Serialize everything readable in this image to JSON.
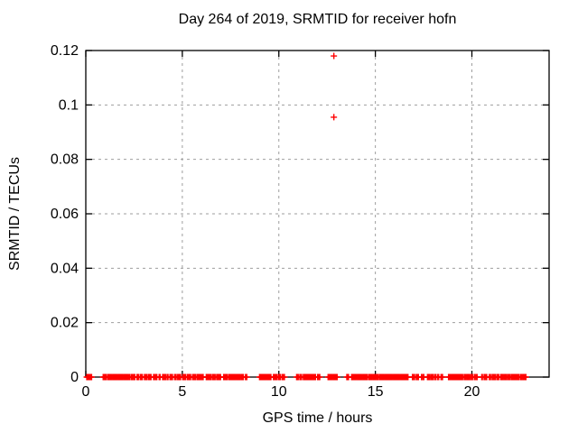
{
  "chart_data": {
    "type": "scatter",
    "title": "Day 264 of 2019, SRMTID for receiver hofn",
    "xlabel": "GPS time / hours",
    "ylabel": "SRMTID / TECUs",
    "xlim": [
      0,
      24
    ],
    "ylim": [
      0,
      0.12
    ],
    "xticks": [
      0,
      5,
      10,
      15,
      20
    ],
    "xtick_labels": [
      "0",
      "5",
      "10",
      "15",
      "20"
    ],
    "yticks": [
      0,
      0.02,
      0.04,
      0.06,
      0.08,
      0.1,
      0.12
    ],
    "ytick_labels": [
      "0",
      "0.02",
      "0.04",
      "0.06",
      "0.08",
      "0.1",
      "0.12"
    ],
    "grid": true,
    "legend_position": "none",
    "marker": "plus",
    "colors": {
      "marker": "#ff0000",
      "grid": "#9e9e9e",
      "border": "#000000",
      "background": "#ffffff",
      "text": "#000000"
    },
    "outlier_points": [
      [
        12.85,
        0.118
      ],
      [
        12.85,
        0.0955
      ]
    ],
    "baseline_y": 0,
    "baseline_marker_spacing_hours": 0.05,
    "baseline_segments": [
      [
        0.05,
        0.3
      ],
      [
        0.9,
        1.06
      ],
      [
        1.14,
        2.26
      ],
      [
        2.34,
        2.54
      ],
      [
        2.65,
        2.75
      ],
      [
        2.84,
        2.93
      ],
      [
        3.04,
        3.15
      ],
      [
        3.23,
        3.38
      ],
      [
        3.51,
        3.56
      ],
      [
        3.62,
        3.68
      ],
      [
        3.8,
        3.85
      ],
      [
        3.98,
        4.13
      ],
      [
        4.21,
        4.26
      ],
      [
        4.36,
        4.49
      ],
      [
        4.6,
        4.68
      ],
      [
        4.76,
        4.91
      ],
      [
        5.02,
        5.18
      ],
      [
        5.27,
        5.43
      ],
      [
        5.53,
        5.69
      ],
      [
        5.77,
        6.08
      ],
      [
        6.24,
        6.47
      ],
      [
        6.55,
        6.7
      ],
      [
        6.78,
        6.98
      ],
      [
        7.14,
        7.33
      ],
      [
        7.41,
        8.0
      ],
      [
        8.06,
        8.16
      ],
      [
        8.27,
        8.34
      ],
      [
        9.0,
        9.59
      ],
      [
        9.72,
        9.9
      ],
      [
        9.98,
        10.09
      ],
      [
        10.18,
        10.29
      ],
      [
        10.92,
        11.04
      ],
      [
        11.12,
        11.18
      ],
      [
        11.27,
        11.9
      ],
      [
        12.01,
        12.12
      ],
      [
        12.55,
        13.02
      ],
      [
        13.52,
        13.61
      ],
      [
        13.77,
        14.58
      ],
      [
        14.66,
        15.13
      ],
      [
        15.2,
        16.69
      ],
      [
        16.92,
        17.03
      ],
      [
        17.12,
        17.23
      ],
      [
        17.39,
        17.51
      ],
      [
        17.7,
        17.81
      ],
      [
        17.88,
        17.98
      ],
      [
        18.06,
        18.12
      ],
      [
        18.21,
        18.28
      ],
      [
        18.4,
        18.48
      ],
      [
        18.79,
        19.33
      ],
      [
        19.37,
        19.52
      ],
      [
        19.6,
        19.76
      ],
      [
        19.81,
        19.93
      ],
      [
        19.99,
        20.06
      ],
      [
        20.15,
        20.27
      ],
      [
        20.51,
        20.58
      ],
      [
        20.66,
        20.77
      ],
      [
        20.9,
        20.97
      ],
      [
        21.05,
        21.21
      ],
      [
        21.29,
        21.39
      ],
      [
        21.49,
        21.81
      ],
      [
        21.88,
        21.99
      ],
      [
        22.06,
        22.45
      ],
      [
        22.53,
        22.8
      ]
    ]
  }
}
